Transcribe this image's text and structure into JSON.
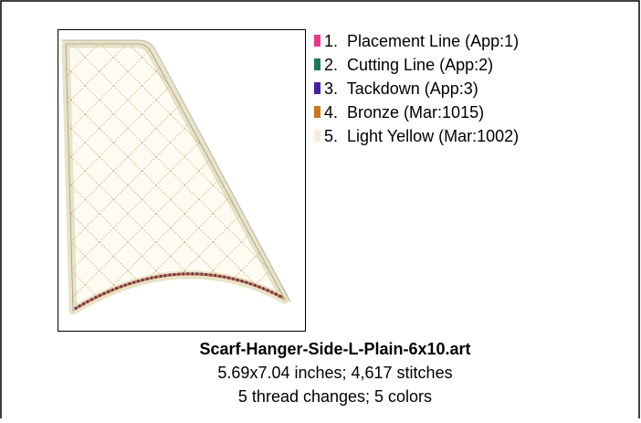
{
  "threads": [
    {
      "label": "1.  Placement Line (App:1)",
      "color": "#e8378d"
    },
    {
      "label": "2.  Cutting Line (App:2)",
      "color": "#177a58"
    },
    {
      "label": "3.  Tackdown (App:3)",
      "color": "#4b1fa3"
    },
    {
      "label": "4.  Bronze (Mar:1015)",
      "color": "#c7791a"
    },
    {
      "label": "5.  Light Yellow (Mar:1002)",
      "color": "#f4efd6"
    }
  ],
  "design": {
    "file_name": "Scarf-Hanger-Side-L-Plain-6x10.art",
    "size_info": "5.69x7.04 inches; 4,617 stitches",
    "thread_info": "5 thread changes; 5 colors"
  }
}
